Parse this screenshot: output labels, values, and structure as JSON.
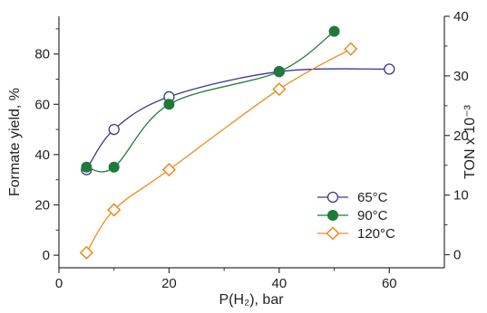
{
  "chart_data": {
    "type": "scatter",
    "xlabel": "P(H₂), bar",
    "ylabel": "Formate yield, %",
    "y2label": "TON x 10⁻³",
    "xlim": [
      0,
      70
    ],
    "ylim": [
      -5,
      95
    ],
    "y2lim": [
      -2.2,
      40
    ],
    "xticks": [
      "0",
      "20",
      "40",
      "60"
    ],
    "yticks": [
      "0",
      "20",
      "40",
      "60",
      "80"
    ],
    "y2ticks": [
      "0",
      "10",
      "20",
      "30",
      "40"
    ],
    "grid": false,
    "legend_position": "bottom-right",
    "series": [
      {
        "name": "65°C",
        "color": "#3a3a8c",
        "marker": "open-circle",
        "x": [
          5,
          10,
          20,
          40,
          60
        ],
        "y": [
          34,
          50,
          63,
          73,
          74
        ]
      },
      {
        "name": "90°C",
        "color": "#1f7a3a",
        "marker": "filled-circle",
        "x": [
          5,
          10,
          20,
          40,
          50
        ],
        "y": [
          35,
          35,
          60,
          73,
          89
        ]
      },
      {
        "name": "120°C",
        "color": "#f08a1c",
        "marker": "open-diamond",
        "x": [
          5,
          10,
          20,
          40,
          53
        ],
        "y": [
          1,
          18,
          34,
          66,
          82
        ]
      }
    ]
  }
}
